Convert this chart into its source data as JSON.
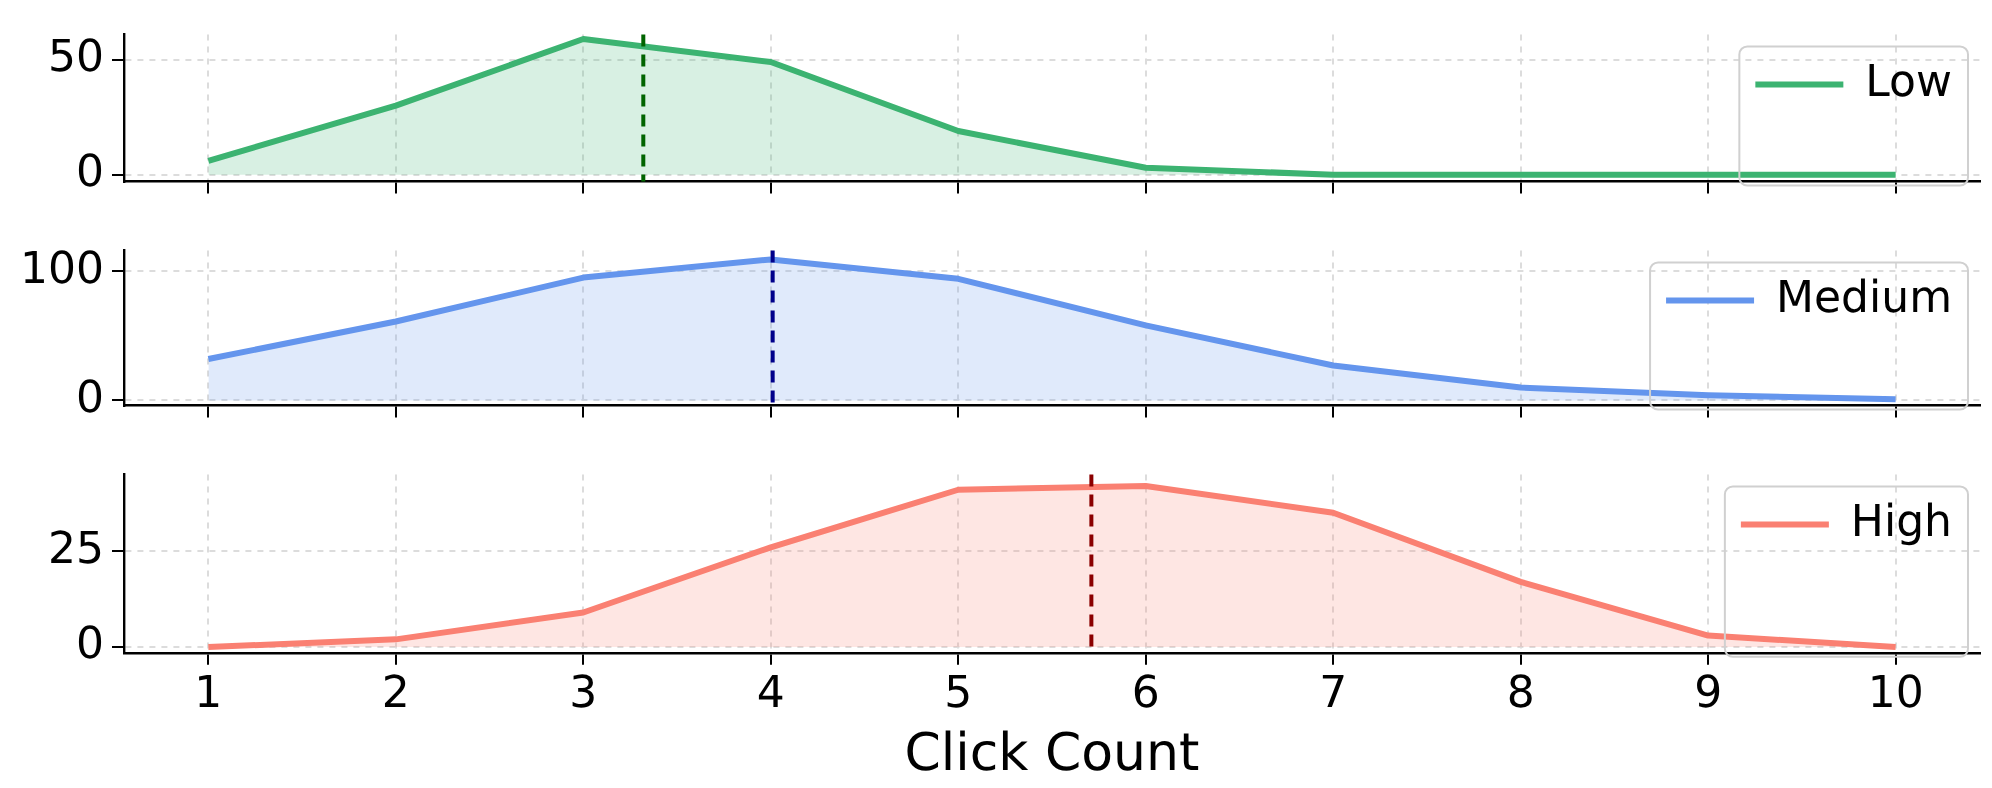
{
  "chart_data": [
    {
      "type": "area",
      "x": [
        1,
        2,
        3,
        4,
        5,
        6,
        7,
        8,
        9,
        10
      ],
      "xlim": [
        0.55,
        10.45
      ],
      "xticks": [
        1,
        2,
        3,
        4,
        5,
        6,
        7,
        8,
        9,
        10
      ],
      "ylim": [
        -3,
        61
      ],
      "yticks": [
        0,
        50
      ],
      "tick_labels": "y",
      "grid": true,
      "legend": "top right",
      "series": [
        {
          "name": "Low",
          "color": "#3cb371",
          "values": [
            6,
            30,
            59,
            49,
            19,
            3,
            0,
            0,
            0,
            0
          ]
        }
      ],
      "ref_lines": [
        {
          "axis": "x",
          "value": 3.32,
          "color": "#006400",
          "line_style": "dashed"
        }
      ]
    },
    {
      "type": "area",
      "x": [
        1,
        2,
        3,
        4,
        5,
        6,
        7,
        8,
        9,
        10
      ],
      "xlim": [
        0.55,
        10.45
      ],
      "xticks": [
        1,
        2,
        3,
        4,
        5,
        6,
        7,
        8,
        9,
        10
      ],
      "ylim": [
        -4,
        116
      ],
      "yticks": [
        0,
        100
      ],
      "tick_labels": "y",
      "grid": true,
      "legend": "top right",
      "series": [
        {
          "name": "Medium",
          "color": "#6495ed",
          "values": [
            32,
            61,
            95,
            109,
            94,
            58,
            27,
            10,
            4,
            1
          ]
        }
      ],
      "ref_lines": [
        {
          "axis": "x",
          "value": 4.01,
          "color": "#00008b",
          "line_style": "dashed"
        }
      ]
    },
    {
      "type": "area",
      "x": [
        1,
        2,
        3,
        4,
        5,
        6,
        7,
        8,
        9,
        10
      ],
      "xlim": [
        0.55,
        10.45
      ],
      "xticks": [
        1,
        2,
        3,
        4,
        5,
        6,
        7,
        8,
        9,
        10
      ],
      "ylim": [
        -1.5,
        45
      ],
      "yticks": [
        0,
        25
      ],
      "xlabel": "Click Count",
      "grid": true,
      "legend": "top right",
      "series": [
        {
          "name": "High",
          "color": "#fa8072",
          "values": [
            0,
            2,
            9,
            26,
            41,
            42,
            35,
            17,
            3,
            0
          ]
        }
      ],
      "ref_lines": [
        {
          "axis": "x",
          "value": 5.71,
          "color": "#8b0000",
          "line_style": "dashed"
        }
      ]
    }
  ]
}
